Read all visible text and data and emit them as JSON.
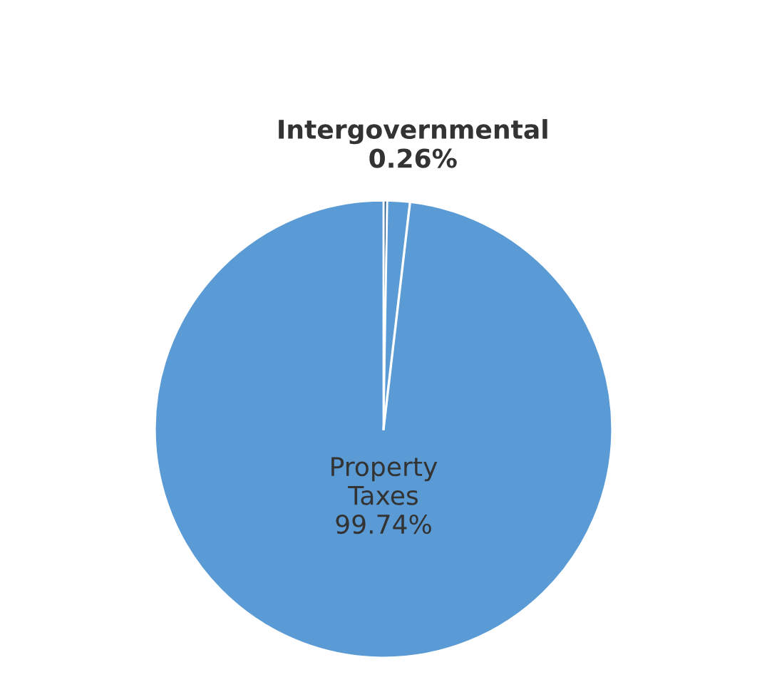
{
  "chart_data": {
    "type": "pie",
    "categories": [
      "Intergovernmental",
      "Property Taxes"
    ],
    "values": [
      0.26,
      99.74
    ],
    "colors": [
      "#2e5f8a",
      "#5b9bd5"
    ],
    "value_labels": [
      "0.26%",
      "99.74%"
    ],
    "legend": false
  }
}
